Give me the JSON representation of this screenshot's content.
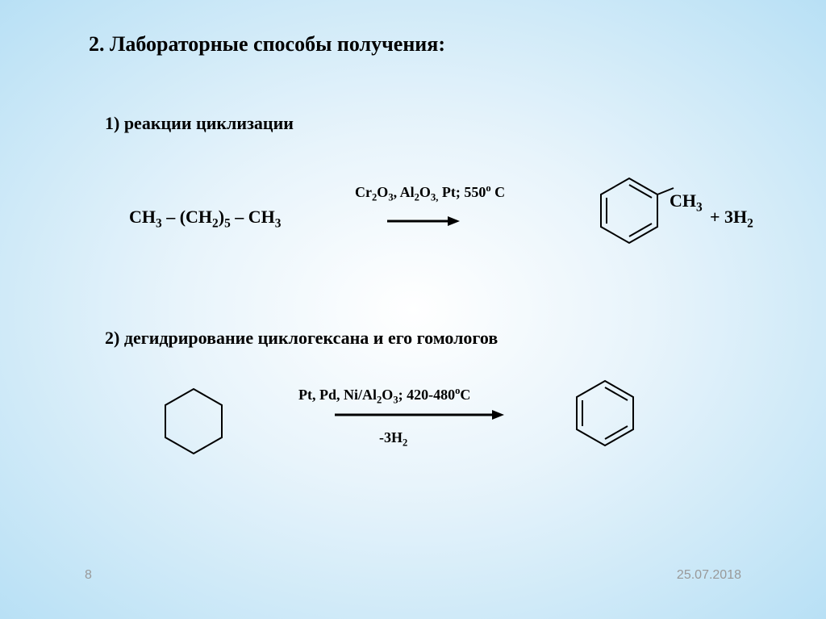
{
  "title": "2. Лабораторные способы получения:",
  "section1": {
    "label": "1) реакции циклизации",
    "reactant_html": "CH<sub>3</sub> – (CH<sub>2</sub>)<sub>5</sub> – CH<sub>3</sub>",
    "catalyst_html": "Cr<sub>2</sub>O<sub>3</sub>, Al<sub>2</sub>O<sub>3,</sub> Pt; 550<sup>o</sup> C",
    "ch3_label_html": "CH<sub>3</sub>",
    "product_text_html": "+ 3H<sub>2</sub>"
  },
  "section2": {
    "label": "2) дегидрирование циклогексана и его гомологов",
    "catalyst_html": "Pt, Pd, Ni/Al<sub>2</sub>O<sub>3</sub>; 420-480<sup>o</sup>C",
    "minus_html": "-3H<sub>2</sub>"
  },
  "footer": {
    "page_number": "8",
    "date": "25.07.2018"
  },
  "colors": {
    "text": "#000000",
    "footer_text": "#999999",
    "stroke": "#000000"
  },
  "shapes": {
    "hexagon_stroke_width": 2,
    "arrow_stroke_width": 3
  }
}
